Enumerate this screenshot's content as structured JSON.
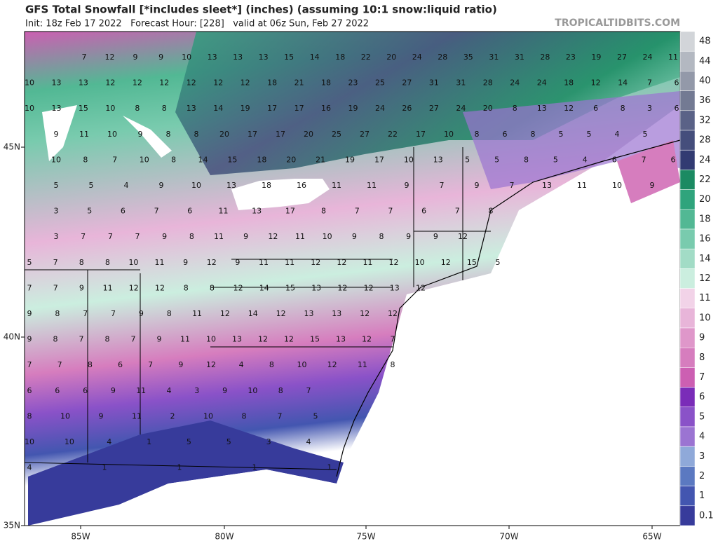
{
  "header": {
    "title": "GFS Total Snowfall [*includes sleet*] (inches) (assuming 10:1 snow:liquid ratio)",
    "subtitle": "Init: 18z Feb 17 2022   Forecast Hour: [228]   valid at 06z Sun, Feb 27 2022",
    "brand": "TROPICALTIDBITS.COM"
  },
  "axes": {
    "longitudes": [
      "85W",
      "80W",
      "75W",
      "70W",
      "65W"
    ],
    "latitudes": [
      "45N",
      "40N",
      "35N"
    ]
  },
  "colorbar": [
    {
      "label": "48",
      "color": "#d2d5d9"
    },
    {
      "label": "44",
      "color": "#b3b8c1"
    },
    {
      "label": "40",
      "color": "#9399a9"
    },
    {
      "label": "36",
      "color": "#737a93"
    },
    {
      "label": "32",
      "color": "#5a6287"
    },
    {
      "label": "28",
      "color": "#454e7c"
    },
    {
      "label": "24",
      "color": "#323b72"
    },
    {
      "label": "22",
      "color": "#1b8a62"
    },
    {
      "label": "20",
      "color": "#2fa47c"
    },
    {
      "label": "18",
      "color": "#52b894"
    },
    {
      "label": "16",
      "color": "#79cbae"
    },
    {
      "label": "14",
      "color": "#a2dcc6"
    },
    {
      "label": "12",
      "color": "#cbeedf"
    },
    {
      "label": "11",
      "color": "#f2d3e8"
    },
    {
      "label": "10",
      "color": "#e8b5d9"
    },
    {
      "label": "9",
      "color": "#df97ca"
    },
    {
      "label": "8",
      "color": "#d67dbe"
    },
    {
      "label": "7",
      "color": "#cc5fb2"
    },
    {
      "label": "6",
      "color": "#7a2cb8"
    },
    {
      "label": "5",
      "color": "#8a52c8"
    },
    {
      "label": "4",
      "color": "#9b74d2"
    },
    {
      "label": "3",
      "color": "#8fa9d9"
    },
    {
      "label": "2",
      "color": "#5b79c1"
    },
    {
      "label": "1",
      "color": "#4356b0"
    },
    {
      "label": "0.1",
      "color": "#373b9b"
    }
  ],
  "map_values": [
    [
      7,
      12,
      9,
      9,
      10,
      13,
      13,
      13,
      15,
      14,
      18,
      22,
      20,
      24,
      28,
      35,
      31,
      31,
      28,
      23,
      19,
      27,
      24,
      11
    ],
    [
      10,
      13,
      13,
      12,
      12,
      12,
      12,
      12,
      12,
      18,
      21,
      18,
      23,
      25,
      27,
      31,
      31,
      28,
      24,
      24,
      18,
      12,
      14,
      7,
      6
    ],
    [
      10,
      13,
      15,
      10,
      8,
      8,
      13,
      14,
      19,
      17,
      17,
      16,
      19,
      24,
      26,
      27,
      24,
      20,
      8,
      13,
      12,
      6,
      8,
      3,
      6
    ],
    [
      9,
      11,
      10,
      9,
      8,
      8,
      20,
      17,
      17,
      20,
      25,
      27,
      22,
      17,
      10,
      8,
      6,
      8,
      5,
      5,
      4,
      5
    ],
    [
      10,
      8,
      7,
      10,
      8,
      14,
      15,
      18,
      20,
      21,
      19,
      17,
      10,
      13,
      5,
      5,
      8,
      5,
      4,
      6,
      7,
      6
    ],
    [
      5,
      5,
      4,
      9,
      10,
      13,
      18,
      16,
      11,
      11,
      9,
      7,
      9,
      7,
      13,
      11,
      10,
      9
    ],
    [
      3,
      5,
      6,
      7,
      6,
      11,
      13,
      17,
      8,
      7,
      7,
      6,
      7,
      8
    ],
    [
      3,
      7,
      7,
      7,
      9,
      8,
      11,
      9,
      12,
      11,
      10,
      9,
      8,
      9,
      9,
      12
    ],
    [
      5,
      7,
      8,
      8,
      10,
      11,
      9,
      12,
      9,
      11,
      11,
      12,
      12,
      11,
      12,
      10,
      12,
      15,
      5
    ],
    [
      7,
      7,
      9,
      11,
      12,
      12,
      8,
      8,
      12,
      14,
      15,
      13,
      12,
      12,
      13,
      12
    ],
    [
      9,
      8,
      7,
      7,
      9,
      8,
      11,
      12,
      14,
      12,
      13,
      13,
      12,
      12
    ],
    [
      9,
      8,
      7,
      8,
      7,
      9,
      11,
      10,
      13,
      12,
      12,
      15,
      13,
      12,
      7
    ],
    [
      7,
      7,
      8,
      6,
      7,
      9,
      12,
      4,
      8,
      10,
      12,
      11,
      8
    ],
    [
      6,
      6,
      6,
      9,
      11,
      4,
      3,
      9,
      10,
      8,
      7
    ],
    [
      8,
      10,
      9,
      11,
      2,
      10,
      8,
      7,
      5
    ],
    [
      10,
      10,
      4,
      1,
      5,
      5,
      3,
      4
    ],
    [
      4,
      1,
      1,
      1,
      1
    ]
  ]
}
